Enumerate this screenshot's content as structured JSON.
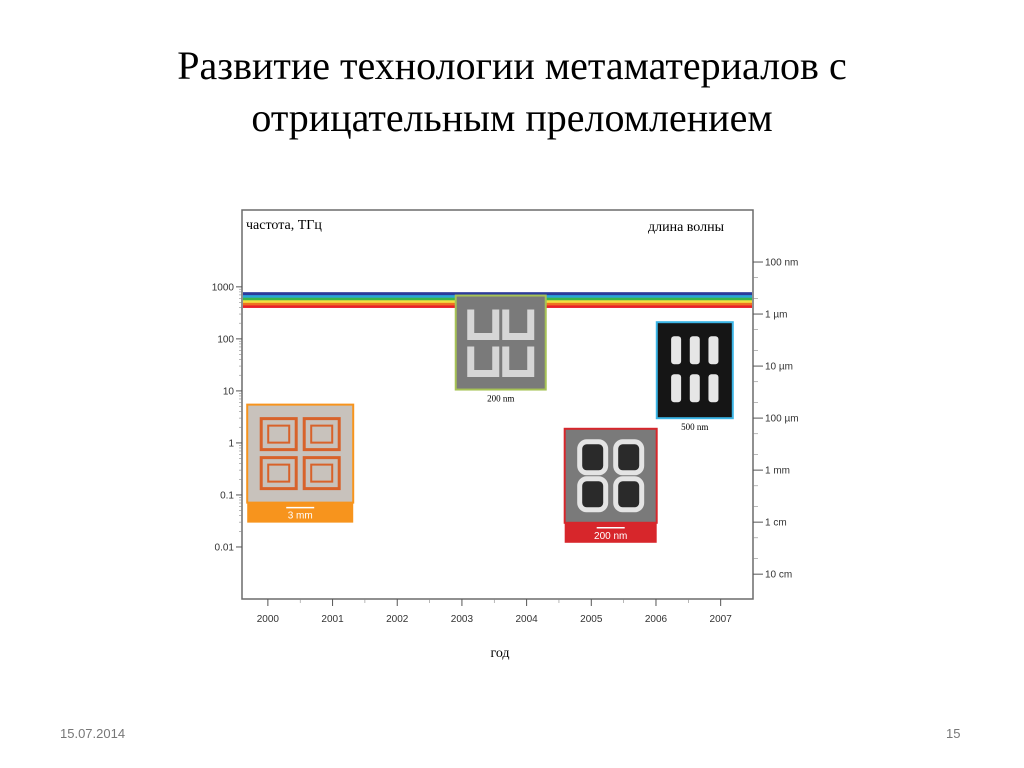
{
  "slide": {
    "title_line1": "Развитие технологии метаматериалов с",
    "title_line2": "отрицательным преломлением",
    "date": "15.07.2014",
    "page_number": "15"
  },
  "chart_data": {
    "type": "scatter",
    "left_axis_title": "частота, ТГц",
    "right_axis_title": "длина волны",
    "xlabel": "год",
    "x_ticks": [
      "2000",
      "2001",
      "2002",
      "2003",
      "2004",
      "2005",
      "2006",
      "2007"
    ],
    "xlim": [
      1999.6,
      2007.5
    ],
    "left_y_scale": "log",
    "left_y_ticks": [
      "1000",
      "100",
      "10",
      "1",
      "0.1",
      "0.01"
    ],
    "left_y_tick_values": [
      1000,
      100,
      10,
      1,
      0.1,
      0.01
    ],
    "ylim_thz": [
      0.001,
      30000
    ],
    "right_y_ticks": [
      "100 nm",
      "1 µm",
      "10 µm",
      "100 µm",
      "1 mm",
      "1 cm",
      "10 cm"
    ],
    "right_y_tick_values_thz": [
      3000,
      300,
      30,
      3,
      0.3,
      0.03,
      0.003
    ],
    "visible_spectrum_thz": [
      400,
      790
    ],
    "visible_spectrum_colors": [
      "#e8202a",
      "#f07020",
      "#f2e040",
      "#3cb54a",
      "#2aa5d8",
      "#2c3a9a"
    ],
    "grid": false,
    "samples": [
      {
        "year": 2000.5,
        "frequency_thz": 0.4,
        "scale_bar": "3 mm",
        "frame_color": "#f7941d"
      },
      {
        "year": 2003.6,
        "frequency_thz": 85,
        "scale_bar": "200 nm",
        "frame_color": "#a6c255"
      },
      {
        "year": 2005.3,
        "frequency_thz": 0.15,
        "scale_bar": "200 nm",
        "frame_color": "#d7262b"
      },
      {
        "year": 2006.6,
        "frequency_thz": 25,
        "scale_bar": "500 nm",
        "frame_color": "#3bb5e6"
      }
    ]
  }
}
